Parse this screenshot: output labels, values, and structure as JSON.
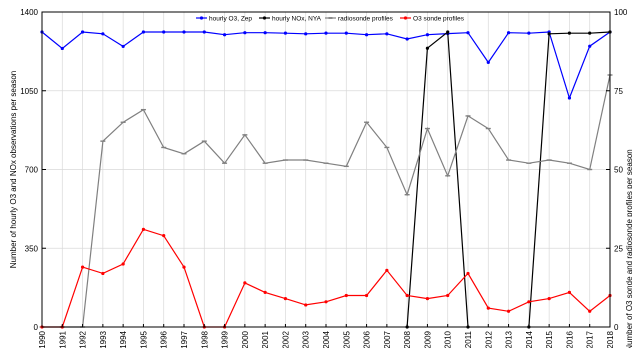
{
  "chart_data": {
    "type": "line",
    "x": [
      "1990",
      "1991",
      "1992",
      "1993",
      "1994",
      "1995",
      "1996",
      "1997",
      "1998",
      "1999",
      "2000",
      "2001",
      "2002",
      "2003",
      "2004",
      "2005",
      "2006",
      "2007",
      "2008",
      "2009",
      "2010",
      "2011",
      "2012",
      "2013",
      "2014",
      "2015",
      "2016",
      "2017",
      "2018"
    ],
    "ylabel_left": "Number of hourly O3 and NOx observations per season",
    "ylabel_right": "Number of O3 sonde and radiosonde profiles per season",
    "ylim_left": [
      0,
      1400
    ],
    "ylim_right": [
      0,
      100
    ],
    "yticks_left": [
      "0",
      "350",
      "700",
      "1050",
      "1400"
    ],
    "yticks_right": [
      "0",
      "25",
      "50",
      "75",
      "100"
    ],
    "grid": true,
    "legend_position": "top-center",
    "series": [
      {
        "name": "hourly O3 Zep",
        "legend_parts": [
          "hourly O",
          "3",
          ", Zep"
        ],
        "axis": "left",
        "color": "#0000ff",
        "marker": "dot",
        "values": [
          1311,
          1238,
          1311,
          1303,
          1247,
          1311,
          1311,
          1311,
          1311,
          1299,
          1308,
          1308,
          1306,
          1303,
          1306,
          1306,
          1299,
          1303,
          1280,
          1299,
          1304,
          1308,
          1176,
          1308,
          1306,
          1311,
          1018,
          1248,
          1311
        ]
      },
      {
        "name": "hourly NOx NYA",
        "legend_parts": [
          "hourly NO",
          "x",
          ", NYA"
        ],
        "axis": "left",
        "color": "#000000",
        "marker": "dot",
        "values": [
          null,
          null,
          null,
          null,
          null,
          null,
          null,
          null,
          null,
          null,
          null,
          null,
          null,
          null,
          null,
          null,
          null,
          null,
          0,
          1239,
          1311,
          0,
          null,
          null,
          0,
          1303,
          1306,
          1306,
          1311
        ]
      },
      {
        "name": "radiosonde profiles",
        "legend_parts": [
          "radiosonde profiles"
        ],
        "axis": "right",
        "color": "#808080",
        "marker": "dash",
        "values": [
          0,
          0,
          0,
          59,
          65,
          69,
          57,
          55,
          59,
          52,
          61,
          52,
          53,
          53,
          52,
          51,
          65,
          57,
          42,
          63,
          48,
          67,
          63,
          53,
          52,
          53,
          52,
          50,
          80
        ]
      },
      {
        "name": "O3 sonde profiles",
        "legend_parts": [
          "O",
          "3",
          " sonde profiles"
        ],
        "axis": "right",
        "color": "#ff0000",
        "marker": "dot",
        "values": [
          0,
          0,
          19,
          17,
          20,
          31,
          29,
          19,
          0,
          0,
          14,
          11,
          9,
          7,
          8,
          10,
          10,
          18,
          10,
          9,
          10,
          17,
          6,
          5,
          8,
          9,
          11,
          5,
          10
        ]
      }
    ]
  }
}
